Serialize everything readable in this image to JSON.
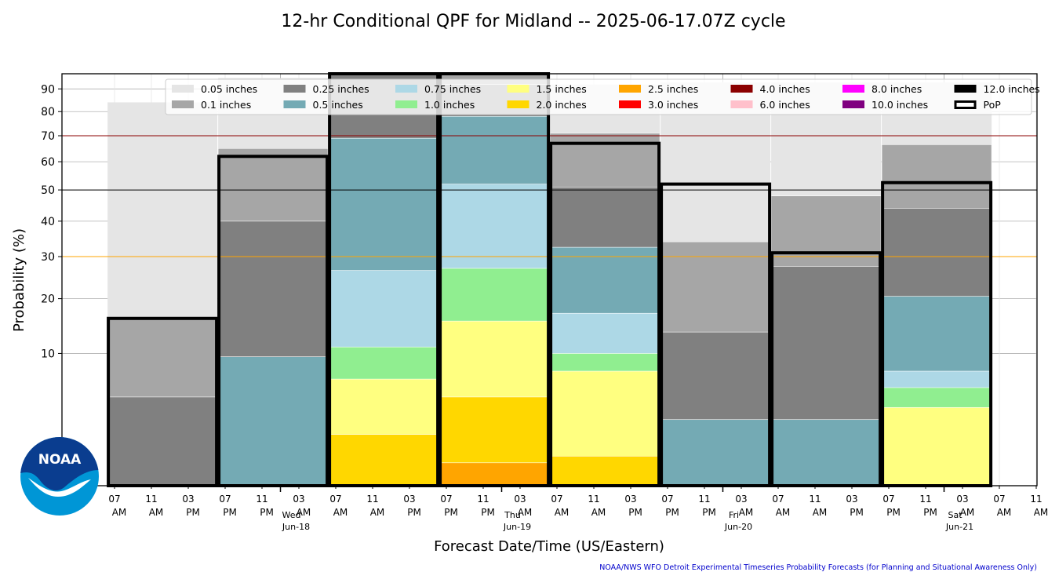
{
  "chart_data": {
    "type": "bar",
    "title": "12-hr Conditional QPF for Midland -- 2025-06-17.07Z cycle",
    "xlabel": "Forecast Date/Time (US/Eastern)",
    "ylabel": "Probability (%)",
    "y_scale": "sqrt",
    "ylim": [
      0,
      97
    ],
    "yticks": [
      10,
      20,
      30,
      40,
      50,
      60,
      70,
      80,
      90
    ],
    "x_ticks": [
      {
        "hour": "07",
        "ampm": "AM"
      },
      {
        "hour": "11",
        "ampm": "AM"
      },
      {
        "hour": "03",
        "ampm": "PM"
      },
      {
        "hour": "07",
        "ampm": "PM"
      },
      {
        "hour": "11",
        "ampm": "PM"
      },
      {
        "hour": "03",
        "ampm": "AM"
      },
      {
        "hour": "07",
        "ampm": "AM"
      },
      {
        "hour": "11",
        "ampm": "AM"
      },
      {
        "hour": "03",
        "ampm": "PM"
      },
      {
        "hour": "07",
        "ampm": "PM"
      },
      {
        "hour": "11",
        "ampm": "PM"
      },
      {
        "hour": "03",
        "ampm": "AM"
      },
      {
        "hour": "07",
        "ampm": "AM"
      },
      {
        "hour": "11",
        "ampm": "AM"
      },
      {
        "hour": "03",
        "ampm": "PM"
      },
      {
        "hour": "07",
        "ampm": "PM"
      },
      {
        "hour": "11",
        "ampm": "PM"
      },
      {
        "hour": "03",
        "ampm": "AM"
      },
      {
        "hour": "07",
        "ampm": "AM"
      },
      {
        "hour": "11",
        "ampm": "AM"
      },
      {
        "hour": "03",
        "ampm": "PM"
      },
      {
        "hour": "07",
        "ampm": "PM"
      },
      {
        "hour": "11",
        "ampm": "PM"
      },
      {
        "hour": "03",
        "ampm": "AM"
      },
      {
        "hour": "07",
        "ampm": "AM"
      },
      {
        "hour": "11",
        "ampm": "AM"
      },
      {
        "hour": "03",
        "ampm": "PM"
      },
      {
        "hour": "07",
        "ampm": "PM"
      },
      {
        "hour": "11",
        "ampm": "PM"
      },
      {
        "hour": "03",
        "ampm": "AM"
      },
      {
        "hour": "07",
        "ampm": "AM"
      }
    ],
    "day_labels": [
      {
        "day": "Wed",
        "date": "Jun-18",
        "at_tick": 4.5
      },
      {
        "day": "Thu",
        "date": "Jun-19",
        "at_tick": 10.5
      },
      {
        "day": "Fri",
        "date": "Jun-20",
        "at_tick": 16.5
      },
      {
        "day": "Sat",
        "date": "Jun-21",
        "at_tick": 22.5
      }
    ],
    "reference_lines": [
      {
        "value": 70,
        "color": "#8b0000"
      },
      {
        "value": 50,
        "color": "#000000"
      },
      {
        "value": 30,
        "color": "#ffa500"
      }
    ],
    "legend": {
      "placement": "top-right",
      "entries": [
        {
          "label": "0.05 inches",
          "color": "#e5e5e5"
        },
        {
          "label": "0.1 inches",
          "color": "#a6a6a6"
        },
        {
          "label": "0.25 inches",
          "color": "#808080"
        },
        {
          "label": "0.5 inches",
          "color": "#74aab4"
        },
        {
          "label": "0.75 inches",
          "color": "#add8e6"
        },
        {
          "label": "1.0 inches",
          "color": "#90ee90"
        },
        {
          "label": "1.5 inches",
          "color": "#ffff80"
        },
        {
          "label": "2.0 inches",
          "color": "#ffd700"
        },
        {
          "label": "2.5 inches",
          "color": "#ffa500"
        },
        {
          "label": "3.0 inches",
          "color": "#ff0000"
        },
        {
          "label": "4.0 inches",
          "color": "#8b0000"
        },
        {
          "label": "6.0 inches",
          "color": "#ffc0cb"
        },
        {
          "label": "8.0 inches",
          "color": "#ff00ff"
        },
        {
          "label": "10.0 inches",
          "color": "#800080"
        },
        {
          "label": "12.0 inches",
          "color": "#000000"
        },
        {
          "label": "PoP",
          "color": "#000000",
          "outline": true
        }
      ]
    },
    "periods": [
      {
        "start_tick": -0.2,
        "end_tick": 2.8,
        "pop": 16,
        "exceed": {
          "0.05": 84,
          "0.1": 16,
          "0.25": 4.5,
          "0.5": 0,
          "0.75": 0,
          "1.0": 0,
          "1.5": 0,
          "2.0": 0,
          "2.5": 0
        }
      },
      {
        "start_tick": 2.8,
        "end_tick": 5.8,
        "pop": 62,
        "exceed": {
          "0.05": 95,
          "0.1": 65,
          "0.25": 40,
          "0.5": 9.5,
          "0.75": 0,
          "1.0": 0,
          "1.5": 0,
          "2.0": 0,
          "2.5": 0
        }
      },
      {
        "start_tick": 5.8,
        "end_tick": 8.8,
        "pop": 97,
        "exceed": {
          "0.05": 97,
          "0.1": 97,
          "0.25": 97,
          "0.5": 69,
          "0.75": 26.5,
          "1.0": 11,
          "1.5": 6.5,
          "2.0": 1.5,
          "2.5": 0
        }
      },
      {
        "start_tick": 8.8,
        "end_tick": 11.8,
        "pop": 97,
        "exceed": {
          "0.05": 97,
          "0.1": 97,
          "0.25": 92,
          "0.5": 78,
          "0.75": 52,
          "1.0": 27,
          "1.5": 15.5,
          "2.0": 4.5,
          "2.5": 0.3
        }
      },
      {
        "start_tick": 11.8,
        "end_tick": 14.8,
        "pop": 67,
        "exceed": {
          "0.05": 92,
          "0.1": 71,
          "0.25": 51,
          "0.5": 32.5,
          "0.75": 17,
          "1.0": 10,
          "1.5": 7.5,
          "2.0": 0.5,
          "2.5": 0
        }
      },
      {
        "start_tick": 14.8,
        "end_tick": 17.8,
        "pop": 52,
        "exceed": {
          "0.05": 93,
          "0.1": 34,
          "0.25": 13.5,
          "0.5": 2.5,
          "0.75": 0,
          "1.0": 0,
          "1.5": 0,
          "2.0": 0,
          "2.5": 0
        }
      },
      {
        "start_tick": 17.8,
        "end_tick": 20.8,
        "pop": 31,
        "exceed": {
          "0.05": 93,
          "0.1": 48,
          "0.25": 27.5,
          "0.5": 2.5,
          "0.75": 0,
          "1.0": 0,
          "1.5": 0,
          "2.0": 0,
          "2.5": 0
        }
      },
      {
        "start_tick": 20.8,
        "end_tick": 23.8,
        "pop": 52.5,
        "exceed": {
          "0.05": 93,
          "0.1": 66.5,
          "0.25": 44,
          "0.5": 20.5,
          "0.75": 7.5,
          "1.0": 5.5,
          "1.5": 3.5,
          "2.0": 0,
          "2.5": 0
        }
      }
    ]
  },
  "credit": "NOAA/NWS WFO Detroit Experimental Timeseries Probability Forecasts (for Planning and Situational Awareness Only)",
  "logo": {
    "text": "NOAA",
    "colors": {
      "top": "#0a3d8f",
      "bottom": "#0096d6"
    }
  }
}
